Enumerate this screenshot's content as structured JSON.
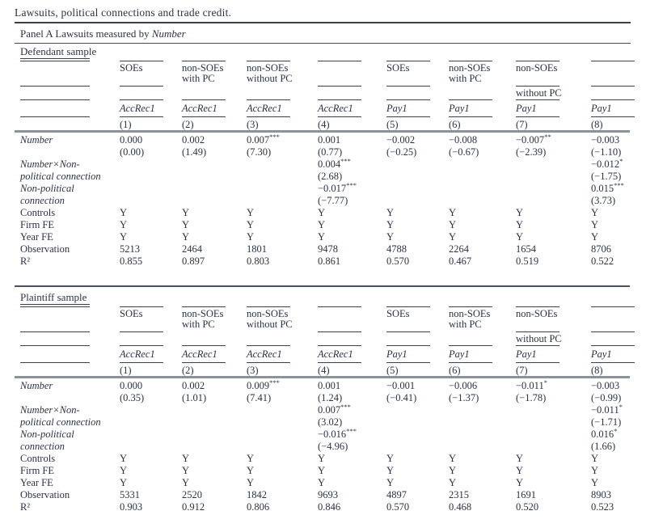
{
  "title": "Lawsuits, political connections and trade credit.",
  "panel": {
    "prefix": "Panel A Lawsuits measured by",
    "measure": "Number"
  },
  "header": {
    "groups_line1": [
      "",
      "SOEs",
      "non-SOEs\nwith PC",
      "non-SOEs\nwithout PC",
      "",
      "SOEs",
      "non-SOEs\nwith PC",
      "non-SOEs",
      ""
    ],
    "groups_line2": [
      "",
      "",
      "",
      "",
      "",
      "",
      "",
      "without PC",
      ""
    ],
    "dep_vars": [
      "AccRec1",
      "AccRec1",
      "AccRec1",
      "AccRec1",
      "Pay1",
      "Pay1",
      "Pay1",
      "Pay1"
    ],
    "col_numbers": [
      "(1)",
      "(2)",
      "(3)",
      "(4)",
      "(5)",
      "(6)",
      "(7)",
      "(8)"
    ]
  },
  "panels": [
    {
      "sample": "Defendant sample",
      "rows": [
        {
          "label": "Number",
          "italic": true,
          "cells": [
            "0.000",
            "0.002",
            "0.007***",
            "0.001",
            "−0.002",
            "−0.008",
            "−0.007**",
            "−0.003"
          ]
        },
        {
          "label": "",
          "italic": false,
          "cells": [
            "(0.00)",
            "(1.49)",
            "(7.30)",
            "(0.77)",
            "(−0.25)",
            "(−0.67)",
            "(−2.39)",
            "(−1.10)"
          ]
        },
        {
          "label": "Number×Non-",
          "italic": true,
          "cells": [
            "",
            "",
            "",
            "0.004***",
            "",
            "",
            "",
            "−0.012*"
          ]
        },
        {
          "label": "political connection",
          "italic": true,
          "cells": [
            "",
            "",
            "",
            "(2.68)",
            "",
            "",
            "",
            "(−1.75)"
          ]
        },
        {
          "label": "Non-political",
          "italic": true,
          "cells": [
            "",
            "",
            "",
            "−0.017***",
            "",
            "",
            "",
            "0.015***"
          ]
        },
        {
          "label": "connection",
          "italic": true,
          "cells": [
            "",
            "",
            "",
            "(−7.77)",
            "",
            "",
            "",
            "(3.73)"
          ]
        },
        {
          "label": "Controls",
          "italic": false,
          "cells": [
            "Y",
            "Y",
            "Y",
            "Y",
            "Y",
            "Y",
            "Y",
            "Y"
          ]
        },
        {
          "label": "Firm FE",
          "italic": false,
          "cells": [
            "Y",
            "Y",
            "Y",
            "Y",
            "Y",
            "Y",
            "Y",
            "Y"
          ]
        },
        {
          "label": "Year FE",
          "italic": false,
          "cells": [
            "Y",
            "Y",
            "Y",
            "Y",
            "Y",
            "Y",
            "Y",
            "Y"
          ]
        },
        {
          "label": "Observation",
          "italic": false,
          "cells": [
            "5213",
            "2464",
            "1801",
            "9478",
            "4788",
            "2264",
            "1654",
            "8706"
          ]
        },
        {
          "label": "R²",
          "italic": false,
          "cells": [
            "0.855",
            "0.897",
            "0.803",
            "0.861",
            "0.570",
            "0.467",
            "0.519",
            "0.522"
          ]
        }
      ]
    },
    {
      "sample": "Plaintiff sample",
      "rows": [
        {
          "label": "Number",
          "italic": true,
          "cells": [
            "0.000",
            "0.002",
            "0.009***",
            "0.001",
            "−0.001",
            "−0.006",
            "−0.011*",
            "−0.003"
          ]
        },
        {
          "label": "",
          "italic": false,
          "cells": [
            "(0.35)",
            "(1.01)",
            "(7.41)",
            "(1.24)",
            "(−0.41)",
            "(−1.37)",
            "(−1.78)",
            "(−0.99)"
          ]
        },
        {
          "label": "Number×Non-",
          "italic": true,
          "cells": [
            "",
            "",
            "",
            "0.007***",
            "",
            "",
            "",
            "−0.011*"
          ]
        },
        {
          "label": "political connection",
          "italic": true,
          "cells": [
            "",
            "",
            "",
            "(3.02)",
            "",
            "",
            "",
            "(−1.71)"
          ]
        },
        {
          "label": "Non-political",
          "italic": true,
          "cells": [
            "",
            "",
            "",
            "−0.016***",
            "",
            "",
            "",
            "0.016*"
          ]
        },
        {
          "label": "connection",
          "italic": true,
          "cells": [
            "",
            "",
            "",
            "(−4.96)",
            "",
            "",
            "",
            "(1.66)"
          ]
        },
        {
          "label": "Controls",
          "italic": false,
          "cells": [
            "Y",
            "Y",
            "Y",
            "Y",
            "Y",
            "Y",
            "Y",
            "Y"
          ]
        },
        {
          "label": "Firm FE",
          "italic": false,
          "cells": [
            "Y",
            "Y",
            "Y",
            "Y",
            "Y",
            "Y",
            "Y",
            "Y"
          ]
        },
        {
          "label": "Year FE",
          "italic": false,
          "cells": [
            "Y",
            "Y",
            "Y",
            "Y",
            "Y",
            "Y",
            "Y",
            "Y"
          ]
        },
        {
          "label": "Observation",
          "italic": false,
          "cells": [
            "5331",
            "2520",
            "1842",
            "9693",
            "4897",
            "2315",
            "1691",
            "8903"
          ]
        },
        {
          "label": "R²",
          "italic": false,
          "cells": [
            "0.903",
            "0.912",
            "0.806",
            "0.846",
            "0.570",
            "0.468",
            "0.520",
            "0.523"
          ]
        }
      ]
    }
  ],
  "colors": {
    "text": "#2a3344",
    "thin_rule": "#39404e",
    "thick_rule": "#8b929c",
    "background": "#ffffff"
  }
}
